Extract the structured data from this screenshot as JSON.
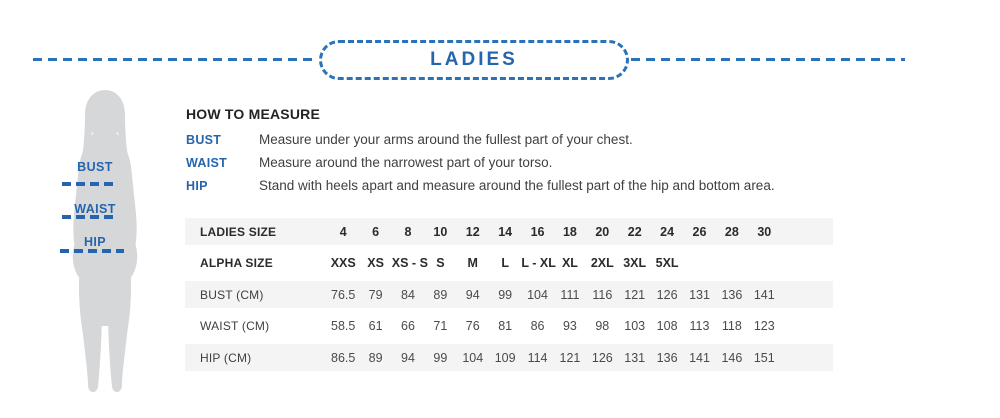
{
  "banner": {
    "title": "LADIES"
  },
  "figure": {
    "labels": [
      "BUST",
      "WAIST",
      "HIP"
    ]
  },
  "how_to_measure": {
    "title": "HOW TO MEASURE",
    "items": [
      {
        "label": "BUST",
        "text": "Measure under your arms around the fullest part of your chest."
      },
      {
        "label": "WAIST",
        "text": "Measure around the narrowest part of your torso."
      },
      {
        "label": "HIP",
        "text": "Stand with heels apart and measure around the fullest part of the hip and bottom area."
      }
    ]
  },
  "size_table": {
    "rows": [
      {
        "label": "LADIES SIZE",
        "bold": true,
        "values": [
          "4",
          "6",
          "8",
          "10",
          "12",
          "14",
          "16",
          "18",
          "20",
          "22",
          "24",
          "26",
          "28",
          "30"
        ]
      },
      {
        "label": "ALPHA SIZE",
        "bold": true,
        "values": [
          "XXS",
          "XS",
          "XS - S",
          "S",
          "M",
          "L",
          "L - XL",
          "XL",
          "2XL",
          "3XL",
          "5XL",
          "",
          "",
          ""
        ]
      },
      {
        "label": "BUST (CM)",
        "bold": false,
        "values": [
          "76.5",
          "79",
          "84",
          "89",
          "94",
          "99",
          "104",
          "111",
          "116",
          "121",
          "126",
          "131",
          "136",
          "141"
        ]
      },
      {
        "label": "WAIST (CM)",
        "bold": false,
        "values": [
          "58.5",
          "61",
          "66",
          "71",
          "76",
          "81",
          "86",
          "93",
          "98",
          "103",
          "108",
          "113",
          "118",
          "123"
        ]
      },
      {
        "label": "HIP (CM)",
        "bold": false,
        "values": [
          "86.5",
          "89",
          "94",
          "99",
          "104",
          "109",
          "114",
          "121",
          "126",
          "131",
          "136",
          "141",
          "146",
          "151"
        ]
      }
    ]
  },
  "colors": {
    "accent_blue": "#2565ae",
    "dash_blue": "#2b72b8",
    "silhouette_gray": "#d6d7d9",
    "row_gray": "#f4f4f5",
    "heading_dark": "#2b2b2b",
    "body_text": "#404040"
  }
}
